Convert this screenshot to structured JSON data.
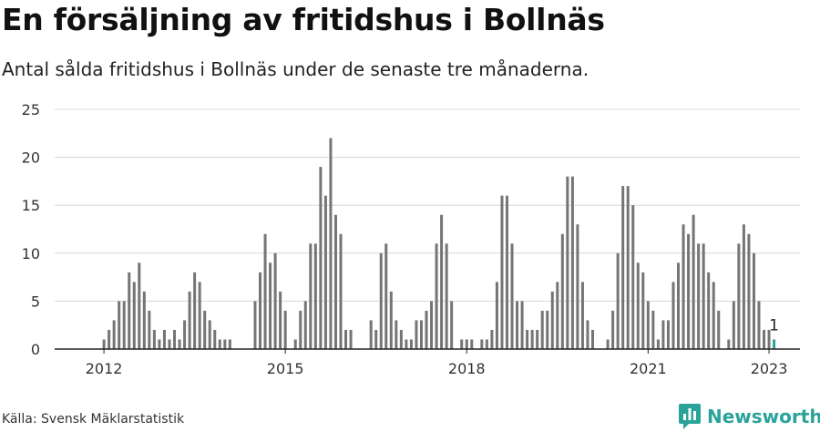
{
  "title": "En försäljning av fritidshus i Bollnäs",
  "subtitle": "Antal sålda fritidshus i Bollnäs under de senaste tre månaderna.",
  "source": "Källa: Svensk Mäklarstatistik",
  "brand": {
    "name": "Newsworthy"
  },
  "colors": {
    "bar": "#757575",
    "highlight": "#2aa39a",
    "grid": "#d8d8d8",
    "axis": "#222222"
  },
  "chart_data": {
    "type": "bar",
    "xlabel": "",
    "ylabel": "",
    "ylim": [
      0,
      25
    ],
    "yticks": [
      0,
      5,
      10,
      15,
      20,
      25
    ],
    "xticks": [
      "2012",
      "2015",
      "2018",
      "2021",
      "2023"
    ],
    "grid": true,
    "start_month": "2011-10",
    "values": [
      null,
      null,
      null,
      1,
      2,
      3,
      5,
      5,
      8,
      7,
      9,
      6,
      4,
      2,
      1,
      2,
      1,
      2,
      1,
      3,
      6,
      8,
      7,
      4,
      3,
      2,
      1,
      1,
      1,
      null,
      null,
      null,
      null,
      5,
      8,
      12,
      9,
      10,
      6,
      4,
      null,
      1,
      4,
      5,
      11,
      11,
      19,
      16,
      22,
      14,
      12,
      2,
      2,
      null,
      null,
      null,
      3,
      2,
      10,
      11,
      6,
      3,
      2,
      1,
      1,
      3,
      3,
      4,
      5,
      11,
      14,
      11,
      5,
      null,
      1,
      1,
      1,
      null,
      1,
      1,
      2,
      7,
      16,
      16,
      11,
      5,
      5,
      2,
      2,
      2,
      4,
      4,
      6,
      7,
      12,
      18,
      18,
      13,
      7,
      3,
      2,
      null,
      null,
      1,
      4,
      10,
      17,
      17,
      15,
      9,
      8,
      5,
      4,
      1,
      3,
      3,
      7,
      9,
      13,
      12,
      14,
      11,
      11,
      8,
      7,
      4,
      null,
      1,
      5,
      11,
      13,
      12,
      10,
      5,
      2,
      2,
      1
    ],
    "highlight": {
      "index": 136,
      "label": "1"
    }
  }
}
